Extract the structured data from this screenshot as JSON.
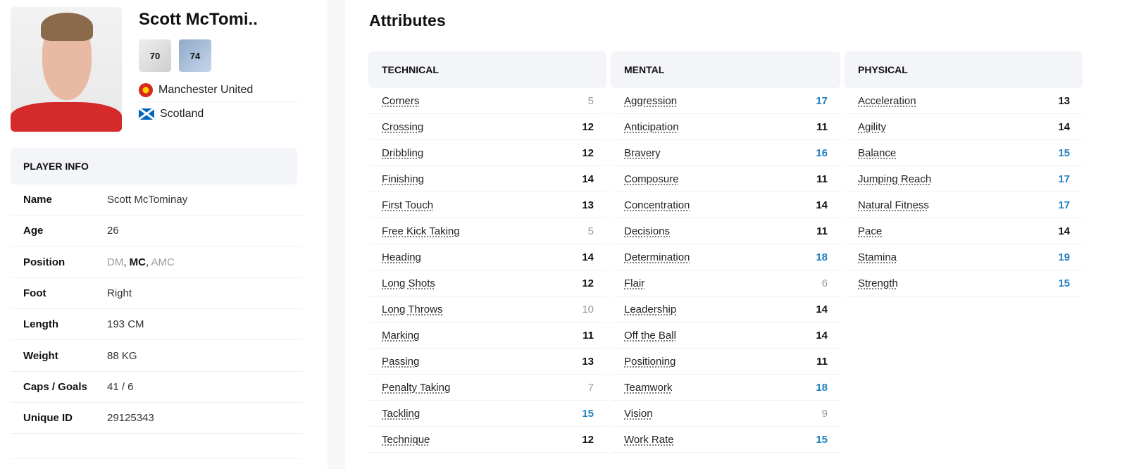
{
  "player": {
    "name": "Scott McTomi..",
    "ratings": [
      "70",
      "74"
    ],
    "club": "Manchester United",
    "nation": "Scotland"
  },
  "info": {
    "header": "PLAYER INFO",
    "rows": [
      {
        "k": "Name",
        "v": "Scott McTominay"
      },
      {
        "k": "Age",
        "v": "26"
      },
      {
        "k": "Position",
        "positions": [
          "DM",
          "MC",
          "AMC"
        ]
      },
      {
        "k": "Foot",
        "v": "Right"
      },
      {
        "k": "Length",
        "v": "193 CM"
      },
      {
        "k": "Weight",
        "v": "88 KG"
      },
      {
        "k": "Caps / Goals",
        "v": "41 / 6"
      },
      {
        "k": "Unique ID",
        "v": "29125343"
      }
    ]
  },
  "attributes": {
    "title": "Attributes",
    "colors": {
      "low": "#999999",
      "mid": "#111111",
      "high": "#1f7fc0"
    },
    "columns": [
      {
        "header": "TECHNICAL",
        "items": [
          [
            "Corners",
            5
          ],
          [
            "Crossing",
            12
          ],
          [
            "Dribbling",
            12
          ],
          [
            "Finishing",
            14
          ],
          [
            "First Touch",
            13
          ],
          [
            "Free Kick Taking",
            5
          ],
          [
            "Heading",
            14
          ],
          [
            "Long Shots",
            12
          ],
          [
            "Long Throws",
            10
          ],
          [
            "Marking",
            11
          ],
          [
            "Passing",
            13
          ],
          [
            "Penalty Taking",
            7
          ],
          [
            "Tackling",
            15
          ],
          [
            "Technique",
            12
          ]
        ]
      },
      {
        "header": "MENTAL",
        "items": [
          [
            "Aggression",
            17
          ],
          [
            "Anticipation",
            11
          ],
          [
            "Bravery",
            16
          ],
          [
            "Composure",
            11
          ],
          [
            "Concentration",
            14
          ],
          [
            "Decisions",
            11
          ],
          [
            "Determination",
            18
          ],
          [
            "Flair",
            6
          ],
          [
            "Leadership",
            14
          ],
          [
            "Off the Ball",
            14
          ],
          [
            "Positioning",
            11
          ],
          [
            "Teamwork",
            18
          ],
          [
            "Vision",
            9
          ],
          [
            "Work Rate",
            15
          ]
        ]
      },
      {
        "header": "PHYSICAL",
        "items": [
          [
            "Acceleration",
            13
          ],
          [
            "Agility",
            14
          ],
          [
            "Balance",
            15
          ],
          [
            "Jumping Reach",
            17
          ],
          [
            "Natural Fitness",
            17
          ],
          [
            "Pace",
            14
          ],
          [
            "Stamina",
            19
          ],
          [
            "Strength",
            15
          ]
        ]
      }
    ]
  }
}
